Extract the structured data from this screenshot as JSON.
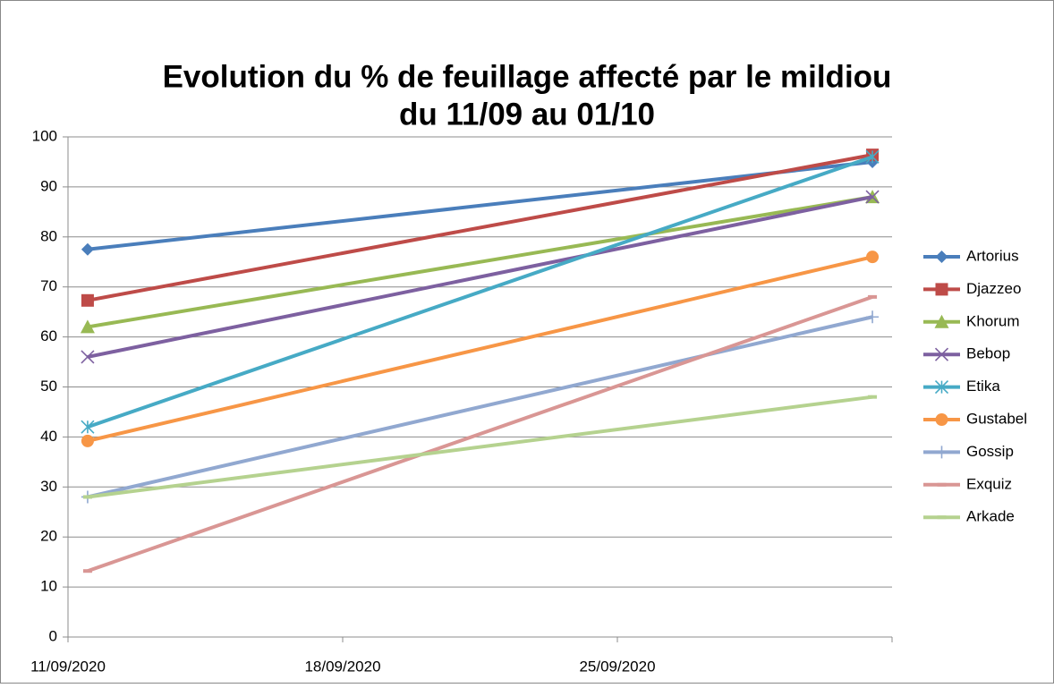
{
  "chart_data": {
    "type": "line",
    "title": [
      "Evolution du % de feuillage affecté par le mildiou",
      "du 11/09 au 01/10"
    ],
    "x": [
      "11/09/2020",
      "01/10/2020"
    ],
    "xlim": [
      "11/09/2020",
      "02/10/2020"
    ],
    "xticks": [
      "11/09/2020",
      "18/09/2020",
      "25/09/2020"
    ],
    "ylim": [
      0,
      100
    ],
    "yticks": [
      0,
      10,
      20,
      30,
      40,
      50,
      60,
      70,
      80,
      90,
      100
    ],
    "grid": true,
    "legend": "right",
    "series": [
      {
        "name": "Artorius",
        "color": "#4a7ebb",
        "marker": "diamond",
        "values": [
          77.5,
          95
        ]
      },
      {
        "name": "Djazzeo",
        "color": "#be4b48",
        "marker": "square",
        "values": [
          67.3,
          96.4
        ]
      },
      {
        "name": "Khorum",
        "color": "#98b954",
        "marker": "triangle",
        "values": [
          62,
          88
        ]
      },
      {
        "name": "Bebop",
        "color": "#7d60a0",
        "marker": "x",
        "values": [
          56,
          88
        ]
      },
      {
        "name": "Etika",
        "color": "#46aac5",
        "marker": "star",
        "values": [
          42,
          96
        ]
      },
      {
        "name": "Gustabel",
        "color": "#f79646",
        "marker": "circle",
        "values": [
          39.2,
          76
        ]
      },
      {
        "name": "Gossip",
        "color": "#91a8d0",
        "marker": "plus",
        "values": [
          28,
          64
        ]
      },
      {
        "name": "Exquiz",
        "color": "#d99694",
        "marker": "dash",
        "values": [
          13.2,
          68
        ]
      },
      {
        "name": "Arkade",
        "color": "#b5d28f",
        "marker": "dash",
        "values": [
          28,
          48
        ]
      }
    ]
  }
}
